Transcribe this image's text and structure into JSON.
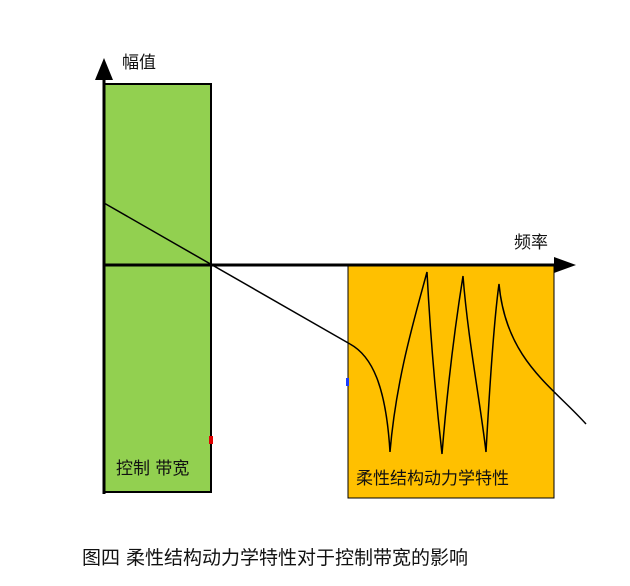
{
  "axes": {
    "y_label": "幅值",
    "x_label": "频率"
  },
  "regions": {
    "control_bandwidth": {
      "label": "控制 带宽",
      "color": "#92d050"
    },
    "flexible_dynamics": {
      "label": "柔性结构动力学特性",
      "color": "#ffc000"
    }
  },
  "caption": "图四  柔性结构动力学特性对于控制带宽的影响"
}
